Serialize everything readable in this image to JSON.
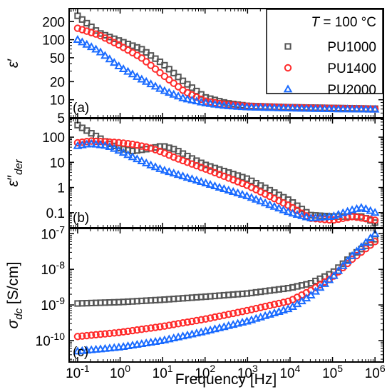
{
  "figure": {
    "xlabel": "Frequency [Hz]",
    "legend_title": "T = 100 °C",
    "legend_title_var": "T",
    "legend_title_rest": " = 100 °C"
  },
  "chart_data": [
    {
      "panel_label": "(a)",
      "type": "scatter",
      "ylabel": "ε′",
      "ylabel_base": "ε",
      "ylabel_prime": "′",
      "xscale": "log",
      "yscale": "log",
      "xlim": [
        0.0631,
        1580000.0
      ],
      "ylim": [
        5,
        330
      ],
      "yticks": [
        5,
        10,
        20,
        50,
        100,
        200
      ],
      "ytick_labels": [
        "5",
        "10",
        "20",
        "50",
        "100",
        "200"
      ],
      "legend": "top-right",
      "series": [
        {
          "name": "PU1000",
          "color": "#555555",
          "marker": "square",
          "x": [
            0.1,
            0.316,
            1,
            3.16,
            10,
            31.6,
            100,
            316,
            1000,
            10000,
            100000,
            1000000
          ],
          "y": [
            250,
            130,
            95,
            70,
            40,
            20,
            11,
            8.8,
            7.9,
            7.5,
            7.3,
            7.1
          ]
        },
        {
          "name": "PU1400",
          "color": "#ff2a2a",
          "marker": "circle",
          "x": [
            0.1,
            0.316,
            1,
            3.16,
            10,
            31.6,
            100,
            316,
            1000,
            10000,
            100000,
            1000000
          ],
          "y": [
            155,
            120,
            80,
            50,
            26,
            14,
            9.5,
            8.3,
            7.8,
            7.4,
            7.2,
            7.0
          ]
        },
        {
          "name": "PU2000",
          "color": "#1a6bff",
          "marker": "triangle",
          "x": [
            0.1,
            0.316,
            1,
            3.16,
            10,
            31.6,
            100,
            316,
            1000,
            10000,
            100000,
            1000000
          ],
          "y": [
            100,
            65,
            35,
            22,
            14.5,
            10.5,
            8.8,
            7.9,
            7.5,
            7.2,
            7.0,
            6.9
          ]
        }
      ]
    },
    {
      "panel_label": "(b)",
      "type": "scatter",
      "ylabel": "ε″der",
      "ylabel_base": "ε",
      "ylabel_prime": "″",
      "ylabel_sub": "der",
      "xscale": "log",
      "yscale": "log",
      "xlim": [
        0.0631,
        1580000.0
      ],
      "ylim": [
        0.025,
        550
      ],
      "yticks": [
        0.1,
        1,
        10,
        100
      ],
      "ytick_labels": [
        "0.1",
        "1",
        "10",
        "100"
      ],
      "series": [
        {
          "name": "PU1000",
          "color": "#555555",
          "marker": "square",
          "x": [
            0.1,
            0.2,
            0.5,
            1,
            2,
            5,
            10,
            20,
            50,
            100,
            1000,
            10000,
            30000,
            100000,
            500000,
            1000000
          ],
          "y": [
            300,
            150,
            60,
            35,
            28,
            35,
            45,
            32,
            14,
            8,
            2.2,
            0.3,
            0.08,
            0.07,
            0.07,
            0.04
          ]
        },
        {
          "name": "PU1400",
          "color": "#ff2a2a",
          "marker": "circle",
          "x": [
            0.1,
            0.2,
            0.5,
            1,
            2,
            5,
            10,
            20,
            100,
            1000,
            10000,
            30000,
            100000,
            300000,
            1000000
          ],
          "y": [
            60,
            70,
            65,
            60,
            52,
            38,
            25,
            15,
            5.5,
            1.2,
            0.18,
            0.06,
            0.05,
            0.07,
            0.05
          ]
        },
        {
          "name": "PU2000",
          "color": "#1a6bff",
          "marker": "triangle",
          "x": [
            0.1,
            0.2,
            0.5,
            1,
            2,
            5,
            10,
            100,
            1000,
            10000,
            30000,
            100000,
            300000,
            500000,
            1000000
          ],
          "y": [
            45,
            55,
            45,
            28,
            16,
            8,
            5,
            1.5,
            0.45,
            0.1,
            0.06,
            0.07,
            0.13,
            0.16,
            0.1
          ]
        }
      ]
    },
    {
      "panel_label": "(c)",
      "type": "scatter",
      "ylabel": "σdc [S/cm]",
      "ylabel_base": "σ",
      "ylabel_sub": "dc",
      "ylabel_unit": " [S/cm]",
      "xscale": "log",
      "yscale": "log",
      "xlim": [
        0.0631,
        1580000.0
      ],
      "ylim": [
        2.5e-11,
        1.4e-07
      ],
      "yticks": [
        1e-10,
        1e-09,
        1e-08,
        1e-07
      ],
      "ytick_exponents": [
        "-10",
        "-9",
        "-8",
        "-7"
      ],
      "xticks": [
        0.1,
        1,
        10,
        100,
        1000,
        10000,
        100000,
        1000000
      ],
      "xtick_exponents": [
        "-1",
        "0",
        "1",
        "2",
        "3",
        "4",
        "5",
        "6"
      ],
      "series": [
        {
          "name": "PU1000",
          "color": "#555555",
          "marker": "square",
          "x": [
            0.1,
            1,
            10,
            100,
            1000,
            10000,
            30000,
            100000,
            300000,
            1000000
          ],
          "y": [
            1.1e-09,
            1.2e-09,
            1.4e-09,
            1.7e-09,
            2.1e-09,
            3e-09,
            4e-09,
            8e-09,
            2.5e-08,
            7e-08
          ]
        },
        {
          "name": "PU1400",
          "color": "#ff2a2a",
          "marker": "circle",
          "x": [
            0.1,
            1,
            10,
            100,
            1000,
            10000,
            30000,
            100000,
            300000,
            1000000
          ],
          "y": [
            1.3e-10,
            1.7e-10,
            2.5e-10,
            4e-10,
            7e-10,
            1.3e-09,
            2.5e-09,
            6e-09,
            2e-08,
            6e-08
          ]
        },
        {
          "name": "PU2000",
          "color": "#1a6bff",
          "marker": "triangle",
          "x": [
            0.1,
            1,
            10,
            100,
            1000,
            10000,
            30000,
            100000,
            300000,
            1000000
          ],
          "y": [
            5e-11,
            6.5e-11,
            1e-10,
            1.8e-10,
            3.5e-10,
            8e-10,
            1.8e-09,
            6e-09,
            2.5e-08,
            1e-07
          ]
        }
      ]
    }
  ]
}
